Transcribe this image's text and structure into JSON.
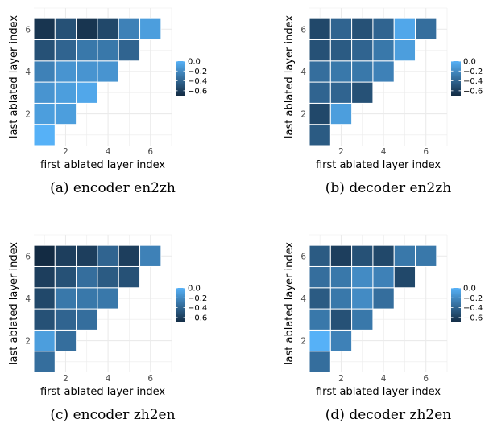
{
  "chart_data": [
    {
      "type": "heatmap",
      "caption": "(a) encoder en2zh",
      "xlabel": "first ablated layer index",
      "ylabel": "last ablated layer index",
      "xticks": [
        2,
        4,
        6
      ],
      "yticks": [
        2,
        4,
        6
      ],
      "legend_ticks": [
        "0.0",
        "−0.2",
        "−0.4",
        "−0.6"
      ],
      "color_range": [
        -0.7,
        0.0
      ],
      "cells": [
        {
          "x": 1,
          "y": 1,
          "v": 0.0
        },
        {
          "x": 1,
          "y": 2,
          "v": -0.1
        },
        {
          "x": 2,
          "y": 2,
          "v": -0.1
        },
        {
          "x": 1,
          "y": 3,
          "v": -0.15
        },
        {
          "x": 2,
          "y": 3,
          "v": -0.1
        },
        {
          "x": 3,
          "y": 3,
          "v": -0.05
        },
        {
          "x": 1,
          "y": 4,
          "v": -0.25
        },
        {
          "x": 2,
          "y": 4,
          "v": -0.15
        },
        {
          "x": 3,
          "y": 4,
          "v": -0.15
        },
        {
          "x": 4,
          "y": 4,
          "v": -0.15
        },
        {
          "x": 1,
          "y": 5,
          "v": -0.5
        },
        {
          "x": 2,
          "y": 5,
          "v": -0.4
        },
        {
          "x": 3,
          "y": 5,
          "v": -0.3
        },
        {
          "x": 4,
          "y": 5,
          "v": -0.3
        },
        {
          "x": 5,
          "y": 5,
          "v": -0.4
        },
        {
          "x": 1,
          "y": 6,
          "v": -0.65
        },
        {
          "x": 2,
          "y": 6,
          "v": -0.5
        },
        {
          "x": 3,
          "y": 6,
          "v": -0.65
        },
        {
          "x": 4,
          "y": 6,
          "v": -0.55
        },
        {
          "x": 5,
          "y": 6,
          "v": -0.25
        },
        {
          "x": 6,
          "y": 6,
          "v": -0.1
        }
      ]
    },
    {
      "type": "heatmap",
      "caption": "(b) decoder en2zh",
      "xlabel": "first ablated layer index",
      "ylabel": "last ablated layer index",
      "xticks": [
        2,
        4,
        6
      ],
      "yticks": [
        2,
        4,
        6
      ],
      "legend_ticks": [
        "0.0",
        "−0.2",
        "−0.4",
        "−0.6"
      ],
      "color_range": [
        -0.7,
        0.0
      ],
      "cells": [
        {
          "x": 1,
          "y": 1,
          "v": -0.45
        },
        {
          "x": 1,
          "y": 2,
          "v": -0.55
        },
        {
          "x": 2,
          "y": 2,
          "v": -0.1
        },
        {
          "x": 1,
          "y": 3,
          "v": -0.4
        },
        {
          "x": 2,
          "y": 3,
          "v": -0.4
        },
        {
          "x": 3,
          "y": 3,
          "v": -0.5
        },
        {
          "x": 1,
          "y": 4,
          "v": -0.35
        },
        {
          "x": 2,
          "y": 4,
          "v": -0.3
        },
        {
          "x": 3,
          "y": 4,
          "v": -0.3
        },
        {
          "x": 4,
          "y": 4,
          "v": -0.25
        },
        {
          "x": 1,
          "y": 5,
          "v": -0.5
        },
        {
          "x": 2,
          "y": 5,
          "v": -0.45
        },
        {
          "x": 3,
          "y": 5,
          "v": -0.4
        },
        {
          "x": 4,
          "y": 5,
          "v": -0.3
        },
        {
          "x": 5,
          "y": 5,
          "v": -0.1
        },
        {
          "x": 1,
          "y": 6,
          "v": -0.55
        },
        {
          "x": 2,
          "y": 6,
          "v": -0.4
        },
        {
          "x": 3,
          "y": 6,
          "v": -0.5
        },
        {
          "x": 4,
          "y": 6,
          "v": -0.4
        },
        {
          "x": 5,
          "y": 6,
          "v": -0.05
        },
        {
          "x": 6,
          "y": 6,
          "v": -0.35
        }
      ]
    },
    {
      "type": "heatmap",
      "caption": "(c) encoder zh2en",
      "xlabel": "first ablated layer index",
      "ylabel": "last ablated layer index",
      "xticks": [
        2,
        4,
        6
      ],
      "yticks": [
        2,
        4,
        6
      ],
      "legend_ticks": [
        "0.0",
        "−0.2",
        "−0.4",
        "−0.6"
      ],
      "color_range": [
        -0.7,
        0.0
      ],
      "cells": [
        {
          "x": 1,
          "y": 1,
          "v": -0.35
        },
        {
          "x": 1,
          "y": 2,
          "v": -0.1
        },
        {
          "x": 2,
          "y": 2,
          "v": -0.35
        },
        {
          "x": 1,
          "y": 3,
          "v": -0.5
        },
        {
          "x": 2,
          "y": 3,
          "v": -0.4
        },
        {
          "x": 3,
          "y": 3,
          "v": -0.35
        },
        {
          "x": 1,
          "y": 4,
          "v": -0.55
        },
        {
          "x": 2,
          "y": 4,
          "v": -0.3
        },
        {
          "x": 3,
          "y": 4,
          "v": -0.3
        },
        {
          "x": 4,
          "y": 4,
          "v": -0.3
        },
        {
          "x": 1,
          "y": 5,
          "v": -0.6
        },
        {
          "x": 2,
          "y": 5,
          "v": -0.5
        },
        {
          "x": 3,
          "y": 5,
          "v": -0.35
        },
        {
          "x": 4,
          "y": 5,
          "v": -0.45
        },
        {
          "x": 5,
          "y": 5,
          "v": -0.5
        },
        {
          "x": 1,
          "y": 6,
          "v": -0.7
        },
        {
          "x": 2,
          "y": 6,
          "v": -0.6
        },
        {
          "x": 3,
          "y": 6,
          "v": -0.6
        },
        {
          "x": 4,
          "y": 6,
          "v": -0.4
        },
        {
          "x": 5,
          "y": 6,
          "v": -0.6
        },
        {
          "x": 6,
          "y": 6,
          "v": -0.25
        }
      ]
    },
    {
      "type": "heatmap",
      "caption": "(d) decoder zh2en",
      "xlabel": "first ablated layer index",
      "ylabel": "last ablated layer index",
      "xticks": [
        2,
        4,
        6
      ],
      "yticks": [
        2,
        4,
        6
      ],
      "legend_ticks": [
        "0.0",
        "−0.2",
        "−0.4",
        "−0.6"
      ],
      "color_range": [
        -0.7,
        0.0
      ],
      "cells": [
        {
          "x": 1,
          "y": 1,
          "v": -0.35
        },
        {
          "x": 1,
          "y": 2,
          "v": 0.0
        },
        {
          "x": 2,
          "y": 2,
          "v": -0.25
        },
        {
          "x": 1,
          "y": 3,
          "v": -0.3
        },
        {
          "x": 2,
          "y": 3,
          "v": -0.5
        },
        {
          "x": 3,
          "y": 3,
          "v": -0.3
        },
        {
          "x": 1,
          "y": 4,
          "v": -0.45
        },
        {
          "x": 2,
          "y": 4,
          "v": -0.3
        },
        {
          "x": 3,
          "y": 4,
          "v": -0.2
        },
        {
          "x": 4,
          "y": 4,
          "v": -0.35
        },
        {
          "x": 1,
          "y": 5,
          "v": -0.35
        },
        {
          "x": 2,
          "y": 5,
          "v": -0.3
        },
        {
          "x": 3,
          "y": 5,
          "v": -0.2
        },
        {
          "x": 4,
          "y": 5,
          "v": -0.25
        },
        {
          "x": 5,
          "y": 5,
          "v": -0.55
        },
        {
          "x": 1,
          "y": 6,
          "v": -0.45
        },
        {
          "x": 2,
          "y": 6,
          "v": -0.6
        },
        {
          "x": 3,
          "y": 6,
          "v": -0.5
        },
        {
          "x": 4,
          "y": 6,
          "v": -0.55
        },
        {
          "x": 5,
          "y": 6,
          "v": -0.3
        },
        {
          "x": 6,
          "y": 6,
          "v": -0.3
        }
      ]
    }
  ],
  "colors": {
    "high": "#56b1f7",
    "low": "#132b43",
    "grid": "#ebebeb",
    "tick_text": "#4d4d4d"
  }
}
